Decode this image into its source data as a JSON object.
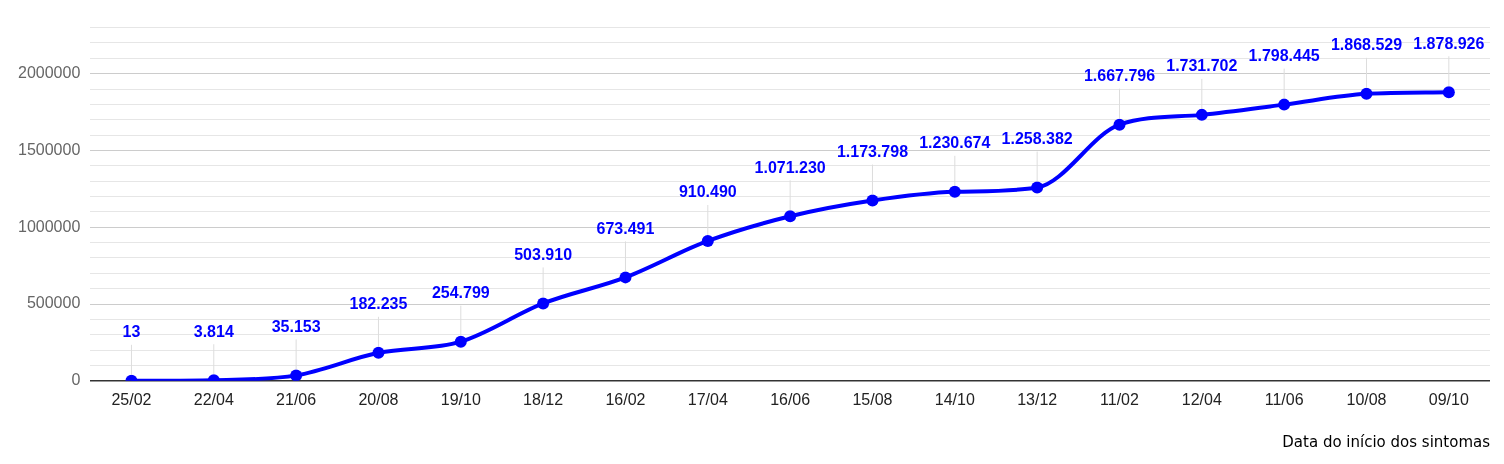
{
  "chart_data": {
    "type": "line",
    "xlabel": "Data do início dos sintomas",
    "categories": [
      "25/02",
      "22/04",
      "21/06",
      "20/08",
      "19/10",
      "18/12",
      "16/02",
      "17/04",
      "16/06",
      "15/08",
      "14/10",
      "13/12",
      "11/02",
      "12/04",
      "11/06",
      "10/08",
      "09/10"
    ],
    "series": [
      {
        "color": "#0000ff",
        "values": [
          13,
          3814,
          35153,
          182235,
          254799,
          503910,
          673491,
          910490,
          1071230,
          1173798,
          1230674,
          1258382,
          1667796,
          1731702,
          1798445,
          1868529,
          1878926
        ],
        "value_labels": [
          "13",
          "3.814",
          "35.153",
          "182.235",
          "254.799",
          "503.910",
          "673.491",
          "910.490",
          "1.071.230",
          "1.173.798",
          "1.230.674",
          "1.258.382",
          "1.667.796",
          "1.731.702",
          "1.798.445",
          "1.868.529",
          "1.878.926"
        ]
      }
    ],
    "ylim": [
      0,
      2300000
    ],
    "yticks": [
      0,
      {
        "value": 100000,
        "label": null
      },
      {
        "value": 200000,
        "label": null
      },
      {
        "value": 300000,
        "label": null
      },
      {
        "value": 400000,
        "label": null
      },
      500000,
      {
        "value": 600000,
        "label": null
      },
      {
        "value": 700000,
        "label": null
      },
      {
        "value": 800000,
        "label": null
      },
      {
        "value": 900000,
        "label": null
      },
      1000000,
      {
        "value": 1100000,
        "label": null
      },
      {
        "value": 1200000,
        "label": null
      },
      {
        "value": 1300000,
        "label": null
      },
      {
        "value": 1400000,
        "label": null
      },
      1500000,
      {
        "value": 1600000,
        "label": null
      },
      {
        "value": 1700000,
        "label": null
      },
      {
        "value": 1800000,
        "label": null
      },
      {
        "value": 1900000,
        "label": null
      },
      2000000,
      {
        "value": 2100000,
        "label": null
      },
      {
        "value": 2200000,
        "label": null
      },
      {
        "value": 2300000,
        "label": null
      }
    ],
    "grid": "y",
    "legend": false,
    "marker": "circle",
    "line_style": "solid"
  }
}
